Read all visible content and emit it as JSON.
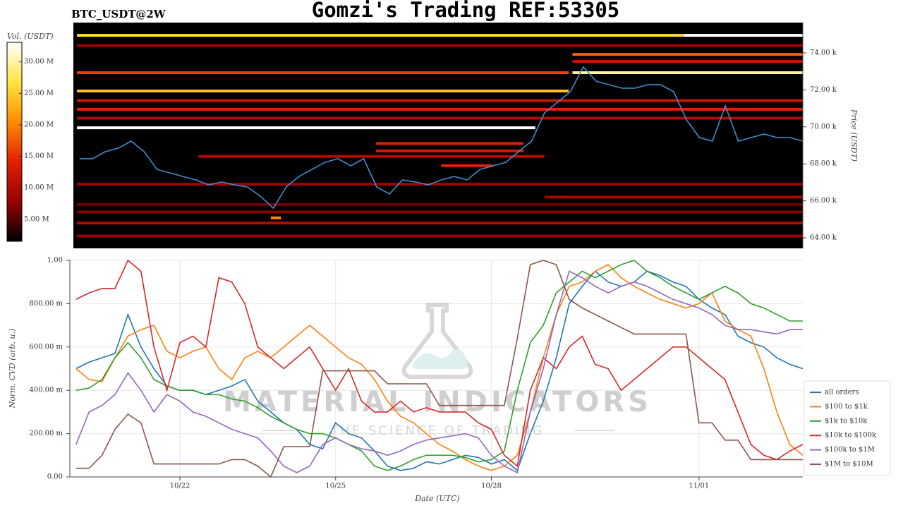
{
  "chart_data": [
    {
      "type": "heatmap",
      "title": "Gomzi's Trading REF:53305",
      "subtitle": "BTC_USDT@2W",
      "ylabel": "Price (USDT)",
      "colorbar_label": "Vol. (USDT)",
      "xlim": [
        19.88,
        34.0
      ],
      "ylim": [
        63430,
        75640
      ],
      "yticks": [
        {
          "value": 64000,
          "label": "64.00 k"
        },
        {
          "value": 66000,
          "label": "66.00 k"
        },
        {
          "value": 68000,
          "label": "68.00 k"
        },
        {
          "value": 70000,
          "label": "70.00 k"
        },
        {
          "value": 72000,
          "label": "72.00 k"
        },
        {
          "value": 74000,
          "label": "74.00 k"
        }
      ],
      "clim": [
        1500000,
        33100000
      ],
      "cticks": [
        {
          "value": 5000000,
          "label": "5.00 M"
        },
        {
          "value": 10000000,
          "label": "10.00 M"
        },
        {
          "value": 15000000,
          "label": "15.00 M"
        },
        {
          "value": 20000000,
          "label": "20.00 M"
        },
        {
          "value": 25000000,
          "label": "25.00 M"
        },
        {
          "value": 30000000,
          "label": "30.00 M"
        }
      ],
      "colorscale": [
        "#000000",
        "#9a0000",
        "#e02000",
        "#ff8c00",
        "#ffe640",
        "#ffffff"
      ],
      "bands": [
        {
          "price": 74950,
          "start": 19.95,
          "end": 31.7,
          "volume": 26000000
        },
        {
          "price": 74950,
          "start": 31.7,
          "end": 34.0,
          "volume": 33000000
        },
        {
          "price": 74400,
          "start": 19.95,
          "end": 34.0,
          "volume": 8000000
        },
        {
          "price": 73920,
          "start": 29.54,
          "end": 34.0,
          "volume": 18000000
        },
        {
          "price": 73540,
          "start": 29.54,
          "end": 34.0,
          "volume": 12000000
        },
        {
          "price": 72930,
          "start": 19.95,
          "end": 29.47,
          "volume": 16000000
        },
        {
          "price": 72930,
          "start": 29.54,
          "end": 34.0,
          "volume": 30000000
        },
        {
          "price": 71940,
          "start": 19.95,
          "end": 29.47,
          "volume": 24000000
        },
        {
          "price": 71420,
          "start": 19.95,
          "end": 34.0,
          "volume": 12000000
        },
        {
          "price": 70950,
          "start": 19.95,
          "end": 34.0,
          "volume": 14000000
        },
        {
          "price": 70470,
          "start": 19.95,
          "end": 34.0,
          "volume": 10000000
        },
        {
          "price": 69950,
          "start": 19.95,
          "end": 28.82,
          "volume": 33000000
        },
        {
          "price": 69100,
          "start": 25.74,
          "end": 28.59,
          "volume": 14000000
        },
        {
          "price": 68700,
          "start": 25.74,
          "end": 28.6,
          "volume": 13000000
        },
        {
          "price": 68400,
          "start": 22.3,
          "end": 29.0,
          "volume": 10000000
        },
        {
          "price": 67900,
          "start": 27.0,
          "end": 28.0,
          "volume": 14000000
        },
        {
          "price": 66900,
          "start": 19.95,
          "end": 34.0,
          "volume": 8000000
        },
        {
          "price": 66200,
          "start": 29.0,
          "end": 34.0,
          "volume": 9000000
        },
        {
          "price": 65800,
          "start": 19.95,
          "end": 34.0,
          "volume": 6000000
        },
        {
          "price": 65400,
          "start": 19.95,
          "end": 34.0,
          "volume": 7000000
        },
        {
          "price": 65080,
          "start": 23.7,
          "end": 23.9,
          "volume": 20000000
        },
        {
          "price": 64800,
          "start": 19.95,
          "end": 34.0,
          "volume": 10000000
        },
        {
          "price": 64100,
          "start": 19.95,
          "end": 34.0,
          "volume": 8000000
        }
      ],
      "price_line": {
        "color": "#3a8fd0",
        "x": [
          20,
          20.25,
          20.5,
          20.75,
          21,
          21.25,
          21.5,
          21.75,
          22,
          22.25,
          22.5,
          22.75,
          23,
          23.25,
          23.5,
          23.75,
          24,
          24.25,
          24.5,
          24.75,
          25,
          25.25,
          25.5,
          25.75,
          26,
          26.25,
          26.5,
          26.75,
          27,
          27.25,
          27.5,
          27.75,
          28,
          28.25,
          28.5,
          28.75,
          29,
          29.25,
          29.5,
          29.75,
          30,
          30.25,
          30.5,
          30.75,
          31,
          31.25,
          31.5,
          31.75,
          32,
          32.25,
          32.5,
          32.75,
          33,
          33.25,
          33.5,
          33.75,
          34
        ],
        "values": [
          68280,
          68280,
          68660,
          68850,
          69230,
          68660,
          67700,
          67510,
          67320,
          67130,
          66860,
          67020,
          66860,
          66750,
          66250,
          65600,
          66750,
          67320,
          67700,
          68080,
          68280,
          67890,
          68280,
          66750,
          66370,
          67130,
          67020,
          66860,
          67130,
          67320,
          67130,
          67700,
          67890,
          68080,
          68660,
          69230,
          70760,
          71330,
          71900,
          73240,
          72470,
          72280,
          72090,
          72090,
          72280,
          72280,
          71900,
          70370,
          69420,
          69230,
          71140,
          69230,
          69420,
          69610,
          69420,
          69420,
          69230
        ]
      }
    },
    {
      "type": "line",
      "ylabel": "Norm. CVD (arb. u.)",
      "xlabel": "Date (UTC)",
      "xlim": [
        19.88,
        34.0
      ],
      "xticks": [
        {
          "value": 22,
          "label": "10/22"
        },
        {
          "value": 25,
          "label": "10/25"
        },
        {
          "value": 28,
          "label": "10/28"
        },
        {
          "value": 32,
          "label": "11/01"
        }
      ],
      "ylim": [
        0,
        1
      ],
      "yticks": [
        {
          "value": 0,
          "label": "0.00"
        },
        {
          "value": 0.2,
          "label": "200.00 m"
        },
        {
          "value": 0.4,
          "label": "400.00 m"
        },
        {
          "value": 0.6,
          "label": "600.00 m"
        },
        {
          "value": 0.8,
          "label": "800.00 m"
        },
        {
          "value": 1,
          "label": "1.00"
        }
      ],
      "grid": true,
      "legend": "right",
      "watermark": "MATERIAL INDICATORS",
      "watermark_subtitle": "THE SCIENCE OF TRADING",
      "x": [
        20,
        20.25,
        20.5,
        20.75,
        21,
        21.25,
        21.5,
        21.75,
        22,
        22.25,
        22.5,
        22.75,
        23,
        23.25,
        23.5,
        23.75,
        24,
        24.25,
        24.5,
        24.75,
        25,
        25.25,
        25.5,
        25.75,
        26,
        26.25,
        26.5,
        26.75,
        27,
        27.25,
        27.5,
        27.75,
        28,
        28.25,
        28.5,
        28.75,
        29,
        29.25,
        29.5,
        29.75,
        30,
        30.25,
        30.5,
        30.75,
        31,
        31.25,
        31.5,
        31.75,
        32,
        32.25,
        32.5,
        32.75,
        33,
        33.25,
        33.5,
        33.75,
        34
      ],
      "series": [
        {
          "name": "all orders",
          "color": "#1f77b4",
          "values": [
            0.5,
            0.53,
            0.55,
            0.57,
            0.75,
            0.6,
            0.5,
            0.42,
            0.4,
            0.4,
            0.38,
            0.4,
            0.42,
            0.45,
            0.35,
            0.3,
            0.25,
            0.22,
            0.15,
            0.13,
            0.25,
            0.2,
            0.18,
            0.12,
            0.05,
            0.03,
            0.04,
            0.07,
            0.06,
            0.08,
            0.1,
            0.09,
            0.06,
            0.08,
            0.03,
            0.2,
            0.35,
            0.55,
            0.8,
            0.88,
            0.95,
            0.9,
            0.88,
            0.9,
            0.95,
            0.93,
            0.9,
            0.88,
            0.82,
            0.78,
            0.75,
            0.65,
            0.62,
            0.6,
            0.55,
            0.52,
            0.5
          ]
        },
        {
          "name": "$100 to $1k",
          "color": "#ff7f0e",
          "values": [
            0.5,
            0.45,
            0.44,
            0.55,
            0.65,
            0.68,
            0.7,
            0.58,
            0.55,
            0.58,
            0.6,
            0.5,
            0.45,
            0.55,
            0.58,
            0.55,
            0.6,
            0.65,
            0.7,
            0.65,
            0.6,
            0.55,
            0.52,
            0.45,
            0.35,
            0.28,
            0.25,
            0.2,
            0.15,
            0.12,
            0.08,
            0.05,
            0.03,
            0.05,
            0.1,
            0.3,
            0.55,
            0.75,
            0.88,
            0.9,
            0.95,
            0.98,
            0.92,
            0.88,
            0.85,
            0.82,
            0.8,
            0.78,
            0.8,
            0.85,
            0.72,
            0.68,
            0.65,
            0.5,
            0.3,
            0.15,
            0.1
          ]
        },
        {
          "name": "$1k to $10k",
          "color": "#2ca02c",
          "values": [
            0.4,
            0.41,
            0.45,
            0.55,
            0.62,
            0.55,
            0.45,
            0.42,
            0.4,
            0.4,
            0.38,
            0.38,
            0.36,
            0.35,
            0.32,
            0.28,
            0.25,
            0.22,
            0.2,
            0.2,
            0.18,
            0.15,
            0.12,
            0.05,
            0.03,
            0.05,
            0.08,
            0.1,
            0.1,
            0.1,
            0.09,
            0.07,
            0.08,
            0.12,
            0.4,
            0.62,
            0.7,
            0.85,
            0.9,
            0.95,
            0.92,
            0.95,
            0.98,
            1.0,
            0.95,
            0.92,
            0.88,
            0.85,
            0.82,
            0.85,
            0.88,
            0.85,
            0.8,
            0.78,
            0.75,
            0.72,
            0.72
          ]
        },
        {
          "name": "$10k to $100k",
          "color": "#d62728",
          "values": [
            0.82,
            0.85,
            0.87,
            0.87,
            1.0,
            0.95,
            0.6,
            0.4,
            0.62,
            0.65,
            0.6,
            0.92,
            0.9,
            0.8,
            0.6,
            0.55,
            0.5,
            0.55,
            0.6,
            0.5,
            0.4,
            0.5,
            0.35,
            0.3,
            0.3,
            0.35,
            0.3,
            0.32,
            0.3,
            0.3,
            0.3,
            0.25,
            0.22,
            0.1,
            0.05,
            0.4,
            0.55,
            0.5,
            0.6,
            0.65,
            0.52,
            0.5,
            0.4,
            0.45,
            0.5,
            0.55,
            0.6,
            0.6,
            0.55,
            0.5,
            0.45,
            0.3,
            0.15,
            0.1,
            0.08,
            0.12,
            0.15
          ]
        },
        {
          "name": "$100k to $1M",
          "color": "#9467bd",
          "values": [
            0.15,
            0.3,
            0.33,
            0.38,
            0.48,
            0.4,
            0.3,
            0.38,
            0.35,
            0.3,
            0.28,
            0.25,
            0.22,
            0.2,
            0.18,
            0.12,
            0.05,
            0.02,
            0.05,
            0.15,
            0.18,
            0.15,
            0.13,
            0.12,
            0.1,
            0.12,
            0.15,
            0.17,
            0.18,
            0.19,
            0.2,
            0.18,
            0.1,
            0.05,
            0.02,
            0.3,
            0.5,
            0.75,
            0.95,
            0.92,
            0.88,
            0.85,
            0.88,
            0.9,
            0.88,
            0.85,
            0.82,
            0.8,
            0.78,
            0.75,
            0.7,
            0.68,
            0.68,
            0.67,
            0.66,
            0.68,
            0.68
          ]
        },
        {
          "name": "$1M to $10M",
          "color": "#8c564b",
          "values": [
            0.04,
            0.04,
            0.1,
            0.22,
            0.29,
            0.25,
            0.06,
            0.06,
            0.06,
            0.06,
            0.06,
            0.06,
            0.08,
            0.08,
            0.05,
            0.0,
            0.14,
            0.14,
            0.14,
            0.49,
            0.49,
            0.49,
            0.49,
            0.49,
            0.43,
            0.43,
            0.43,
            0.43,
            0.33,
            0.33,
            0.33,
            0.33,
            0.33,
            0.33,
            0.64,
            0.98,
            1.0,
            0.98,
            0.82,
            0.78,
            0.75,
            0.72,
            0.69,
            0.66,
            0.66,
            0.66,
            0.66,
            0.66,
            0.25,
            0.25,
            0.17,
            0.17,
            0.08,
            0.08,
            0.08,
            0.08,
            0.08
          ]
        }
      ]
    }
  ]
}
